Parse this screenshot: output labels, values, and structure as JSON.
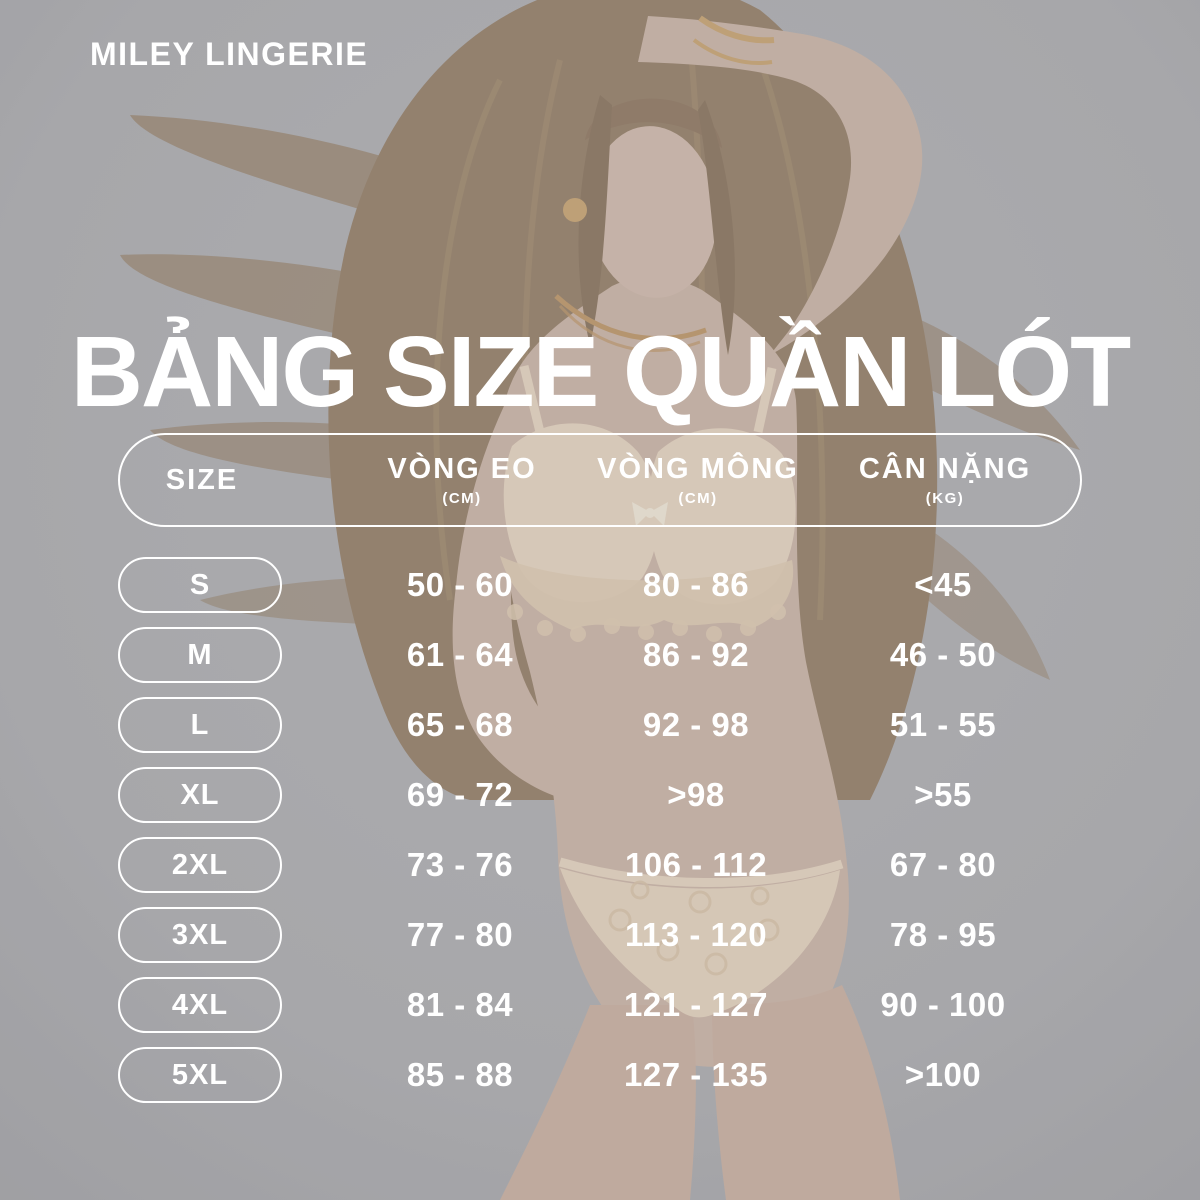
{
  "brand": "MILEY LINGERIE",
  "title": "BẢNG SIZE QUẦN LÓT",
  "colors": {
    "background": "#a7a7aa",
    "text": "#ffffff",
    "skin": "#cbb09f",
    "hair": "#8a7054",
    "lingerie": "#ead6bd",
    "gold": "#c89d60"
  },
  "table": {
    "headers": [
      {
        "label": "SIZE",
        "unit": ""
      },
      {
        "label": "VÒNG EO",
        "unit": "(CM)"
      },
      {
        "label": "VÒNG MÔNG",
        "unit": "(CM)"
      },
      {
        "label": "CÂN NẶNG",
        "unit": "(KG)"
      }
    ],
    "rows": [
      {
        "size": "S",
        "waist": "50 - 60",
        "hip": "80 - 86",
        "weight": "<45"
      },
      {
        "size": "M",
        "waist": "61 - 64",
        "hip": "86 - 92",
        "weight": "46 - 50"
      },
      {
        "size": "L",
        "waist": "65 - 68",
        "hip": "92 - 98",
        "weight": "51 - 55"
      },
      {
        "size": "XL",
        "waist": "69 - 72",
        "hip": ">98",
        "weight": ">55"
      },
      {
        "size": "2XL",
        "waist": "73 - 76",
        "hip": "106 - 112",
        "weight": "67 - 80"
      },
      {
        "size": "3XL",
        "waist": "77 - 80",
        "hip": "113 - 120",
        "weight": "78 - 95"
      },
      {
        "size": "4XL",
        "waist": "81 - 84",
        "hip": "121 - 127",
        "weight": "90 - 100"
      },
      {
        "size": "5XL",
        "waist": "85 - 88",
        "hip": "127 - 135",
        "weight": ">100"
      }
    ]
  }
}
